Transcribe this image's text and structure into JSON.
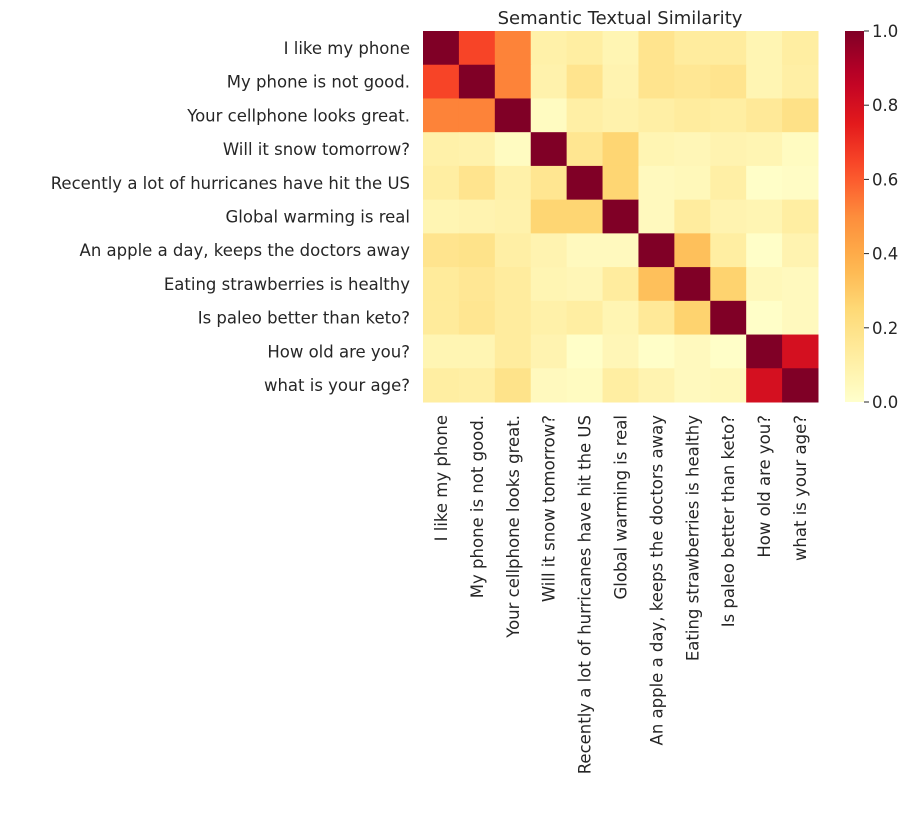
{
  "chart_data": {
    "type": "heatmap",
    "title": "Semantic Textual Similarity",
    "labels": [
      "I like my phone",
      "My phone is not good.",
      "Your cellphone looks great.",
      "Will it snow tomorrow?",
      "Recently a lot of hurricanes have hit the US",
      "Global warming is real",
      "An apple a day, keeps the doctors away",
      "Eating strawberries is healthy",
      "Is paleo better than keto?",
      "How old are you?",
      "what is your age?"
    ],
    "values": [
      [
        1,
        0.65,
        0.52,
        0.1,
        0.12,
        0.07,
        0.18,
        0.13,
        0.13,
        0.07,
        0.12
      ],
      [
        0.65,
        1,
        0.52,
        0.09,
        0.18,
        0.08,
        0.18,
        0.16,
        0.18,
        0.07,
        0.11
      ],
      [
        0.52,
        0.52,
        1,
        0.03,
        0.11,
        0.09,
        0.11,
        0.13,
        0.12,
        0.15,
        0.2
      ],
      [
        0.1,
        0.09,
        0.03,
        1,
        0.17,
        0.26,
        0.07,
        0.06,
        0.08,
        0.07,
        0.03
      ],
      [
        0.12,
        0.18,
        0.1,
        0.17,
        1,
        0.26,
        0.04,
        0.05,
        0.11,
        0.01,
        0.02
      ],
      [
        0.07,
        0.08,
        0.09,
        0.26,
        0.26,
        1,
        0.04,
        0.13,
        0.08,
        0.07,
        0.12
      ],
      [
        0.18,
        0.19,
        0.11,
        0.08,
        0.04,
        0.04,
        1,
        0.33,
        0.12,
        0.01,
        0.08
      ],
      [
        0.14,
        0.16,
        0.13,
        0.07,
        0.06,
        0.13,
        0.33,
        1,
        0.27,
        0.05,
        0.04
      ],
      [
        0.14,
        0.17,
        0.13,
        0.1,
        0.12,
        0.07,
        0.15,
        0.27,
        1,
        0.01,
        0.04
      ],
      [
        0.07,
        0.07,
        0.13,
        0.08,
        0.01,
        0.06,
        0.01,
        0.04,
        0.01,
        1,
        0.8
      ],
      [
        0.12,
        0.11,
        0.19,
        0.04,
        0.03,
        0.12,
        0.08,
        0.04,
        0.05,
        0.8,
        1
      ]
    ],
    "colormap": "YlOrRd",
    "vmin": 0,
    "vmax": 1,
    "colorbar_ticks": [
      "0.0",
      "0.2",
      "0.4",
      "0.6",
      "0.8",
      "1.0"
    ],
    "colorbar_tick_values": [
      0,
      0.2,
      0.4,
      0.6,
      0.8,
      1.0
    ]
  }
}
